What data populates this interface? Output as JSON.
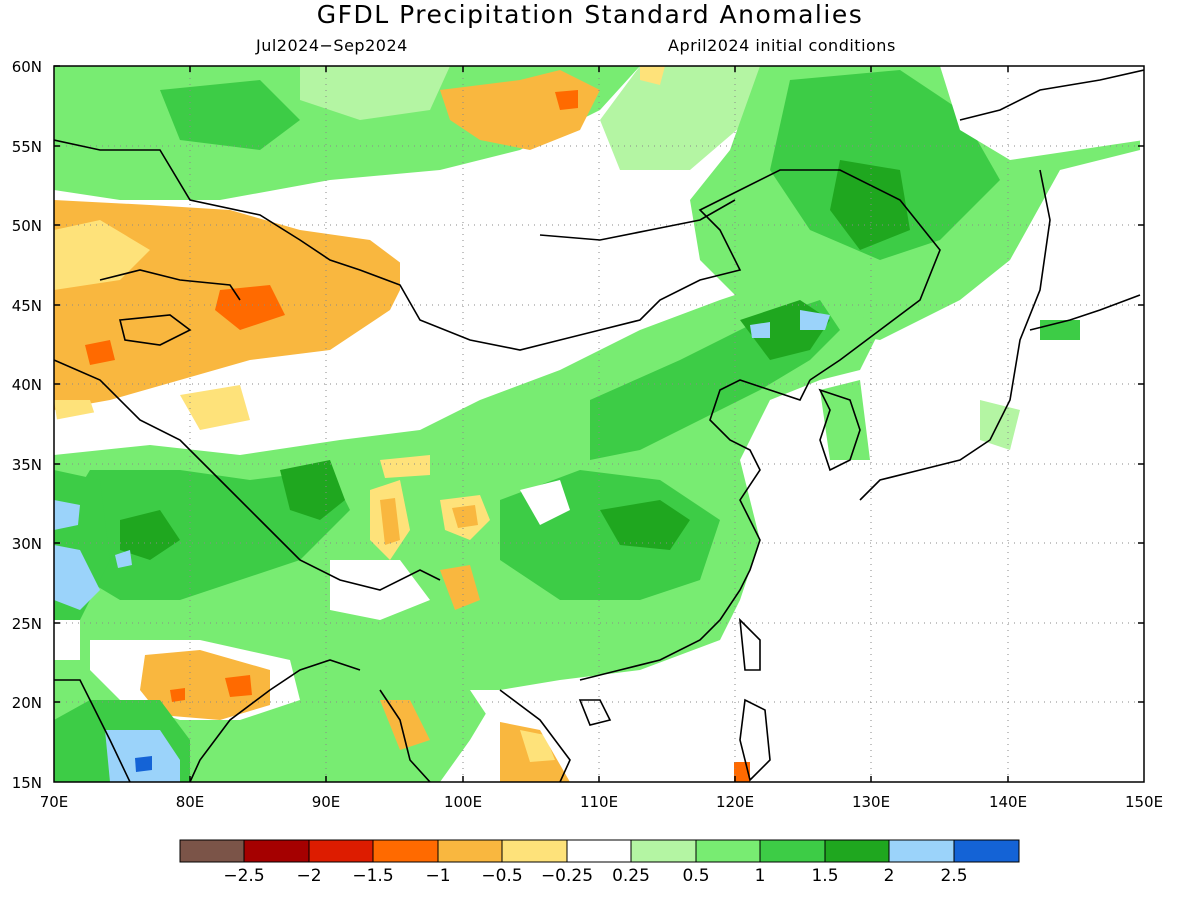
{
  "title": "GFDL Precipitation Standard Anomalies",
  "subtitle_left": "Jul2024−Sep2024",
  "subtitle_right": "April2024 initial conditions",
  "map": {
    "lon_range": [
      70,
      150
    ],
    "lat_range": [
      15,
      60
    ],
    "x_tick_labels": [
      "70E",
      "80E",
      "90E",
      "100E",
      "110E",
      "120E",
      "130E",
      "140E",
      "150E"
    ],
    "y_tick_labels": [
      "60N",
      "55N",
      "50N",
      "45N",
      "40N",
      "35N",
      "30N",
      "25N",
      "20N",
      "15N"
    ],
    "grid": "dotted"
  },
  "colorbar": {
    "labels": [
      "−2.5",
      "−2",
      "−1.5",
      "−1",
      "−0.5",
      "−0.25",
      "0.25",
      "0.5",
      "1",
      "1.5",
      "2",
      "2.5"
    ],
    "colors": [
      "#7b5448",
      "#a50000",
      "#dd1c00",
      "#ff6a00",
      "#f9b73f",
      "#fee27a",
      "#ffffff",
      "#b4f5a3",
      "#78ec72",
      "#3dcc46",
      "#1fa71f",
      "#9bd3fa",
      "#1463d6"
    ]
  }
}
